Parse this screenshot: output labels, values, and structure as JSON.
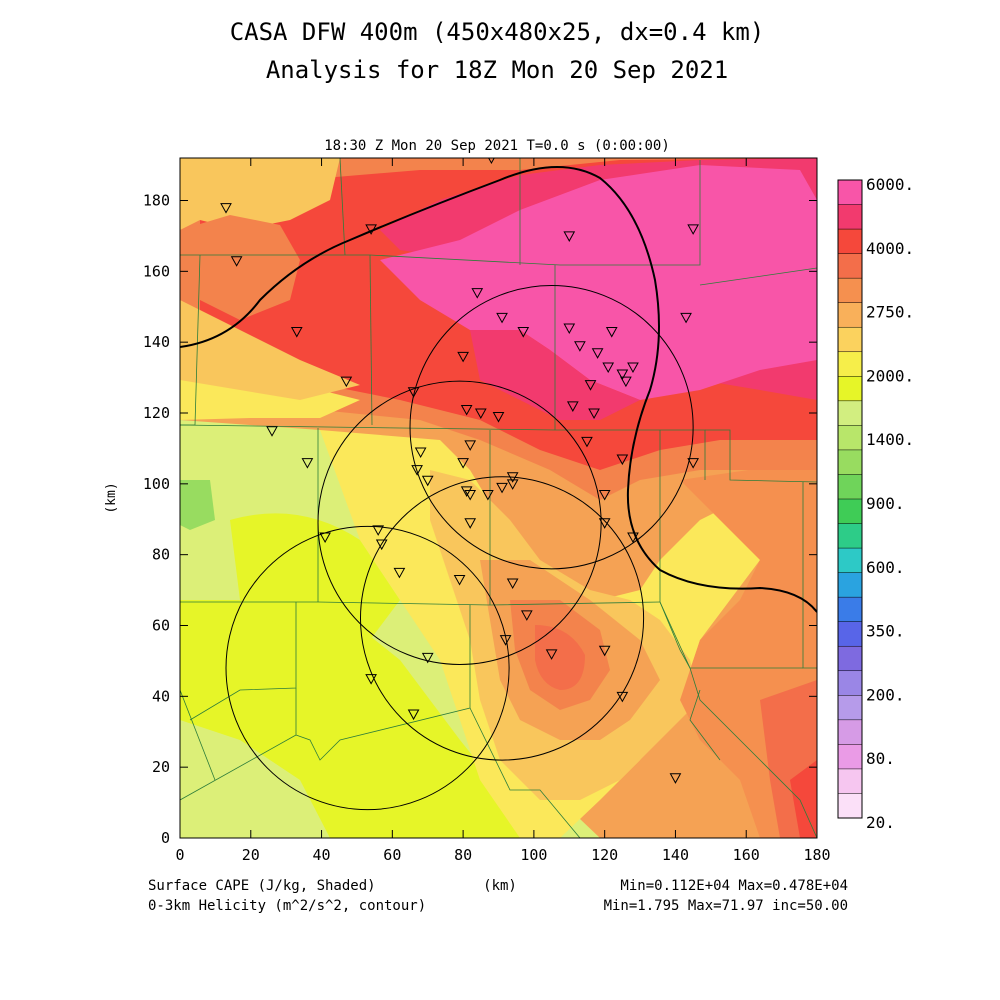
{
  "title": {
    "line1": "CASA DFW 400m (450x480x25, dx=0.4 km)",
    "line2": "Analysis for 18Z Mon 20 Sep 2021"
  },
  "subtitle": "18:30 Z Mon 20 Sep 2021   T=0.0 s (0:00:00)",
  "footer": {
    "left1": "Surface CAPE (J/kg, Shaded)",
    "left2": "0-3km Helicity (m^2/s^2, contour)",
    "center": "(km)",
    "right1": "Min=0.112E+04 Max=0.478E+04",
    "right2": "Min=1.795 Max=71.97 inc=50.00"
  },
  "chart_data": {
    "type": "heatmap",
    "xlabel": "",
    "ylabel": "(km)",
    "xlim": [
      0,
      180
    ],
    "ylim": [
      0,
      192
    ],
    "x_ticks": [
      "0",
      "20",
      "40",
      "60",
      "80",
      "100",
      "120",
      "140",
      "160",
      "180"
    ],
    "y_ticks": [
      "0",
      "20",
      "40",
      "60",
      "80",
      "100",
      "120",
      "140",
      "160",
      "180"
    ],
    "colorbar": {
      "labels": [
        "6000.",
        "4000.",
        "2750.",
        "2000.",
        "1400.",
        "900.",
        "600.",
        "350.",
        "200.",
        "80.",
        "20."
      ],
      "colors": [
        "#f855a8",
        "#f23a6e",
        "#f5483b",
        "#f36e4a",
        "#f5904f",
        "#f9b05a",
        "#fbd25e",
        "#f6ee4a",
        "#e6f528",
        "#d2ee80",
        "#b8e66a",
        "#98dc60",
        "#6fd45a",
        "#3fcc56",
        "#2dcc88",
        "#2dc9c6",
        "#2aa3e0",
        "#3a7ce8",
        "#5865e8",
        "#7e6ae0",
        "#9a86e6",
        "#b69bea",
        "#d69be6",
        "#ea9be6",
        "#f6c6f0",
        "#fbe0f8"
      ]
    },
    "cape_regions": [
      {
        "level": "1400-1600",
        "color": "#dcef78"
      },
      {
        "level": "1600-1800",
        "color": "#e6f528"
      },
      {
        "level": "1800-2000",
        "color": "#fbe85a"
      },
      {
        "level": "2000-2250",
        "color": "#f9c65c"
      },
      {
        "level": "2250-2500",
        "color": "#f5a254"
      },
      {
        "level": "2500-2750",
        "color": "#f3834c"
      },
      {
        "level": "2750-3000",
        "color": "#f5483b"
      },
      {
        "level": "3000-4000",
        "color": "#f23a6e"
      },
      {
        "level": "4000-6000",
        "color": "#f855a8"
      }
    ],
    "radar_circles": [
      {
        "cx": 79,
        "cy": 89,
        "r": 40
      },
      {
        "cx": 105,
        "cy": 116,
        "r": 40
      },
      {
        "cx": 53,
        "cy": 48,
        "r": 40
      },
      {
        "cx": 91,
        "cy": 62,
        "r": 40
      }
    ],
    "stations": [
      [
        13,
        178
      ],
      [
        54,
        172
      ],
      [
        88,
        192
      ],
      [
        110,
        170
      ],
      [
        145,
        172
      ],
      [
        16,
        163
      ],
      [
        33,
        143
      ],
      [
        47,
        129
      ],
      [
        66,
        126
      ],
      [
        84,
        154
      ],
      [
        91,
        147
      ],
      [
        97,
        143
      ],
      [
        110,
        144
      ],
      [
        113,
        139
      ],
      [
        118,
        137
      ],
      [
        122,
        143
      ],
      [
        121,
        133
      ],
      [
        125,
        131
      ],
      [
        126,
        129
      ],
      [
        128,
        133
      ],
      [
        143,
        147
      ],
      [
        116,
        128
      ],
      [
        117,
        120
      ],
      [
        111,
        122
      ],
      [
        80,
        136
      ],
      [
        81,
        121
      ],
      [
        85,
        120
      ],
      [
        90,
        119
      ],
      [
        26,
        115
      ],
      [
        36,
        106
      ],
      [
        68,
        109
      ],
      [
        67,
        104
      ],
      [
        70,
        101
      ],
      [
        80,
        106
      ],
      [
        82,
        111
      ],
      [
        94,
        102
      ],
      [
        94,
        100
      ],
      [
        91,
        99
      ],
      [
        87,
        97
      ],
      [
        81,
        98
      ],
      [
        82,
        97
      ],
      [
        82,
        89
      ],
      [
        115,
        112
      ],
      [
        125,
        107
      ],
      [
        145,
        106
      ],
      [
        120,
        97
      ],
      [
        120,
        89
      ],
      [
        128,
        85
      ],
      [
        56,
        87
      ],
      [
        57,
        83
      ],
      [
        41,
        85
      ],
      [
        62,
        75
      ],
      [
        79,
        73
      ],
      [
        94,
        72
      ],
      [
        98,
        63
      ],
      [
        92,
        56
      ],
      [
        105,
        52
      ],
      [
        120,
        53
      ],
      [
        70,
        51
      ],
      [
        54,
        45
      ],
      [
        125,
        40
      ],
      [
        66,
        35
      ],
      [
        140,
        17
      ]
    ]
  }
}
